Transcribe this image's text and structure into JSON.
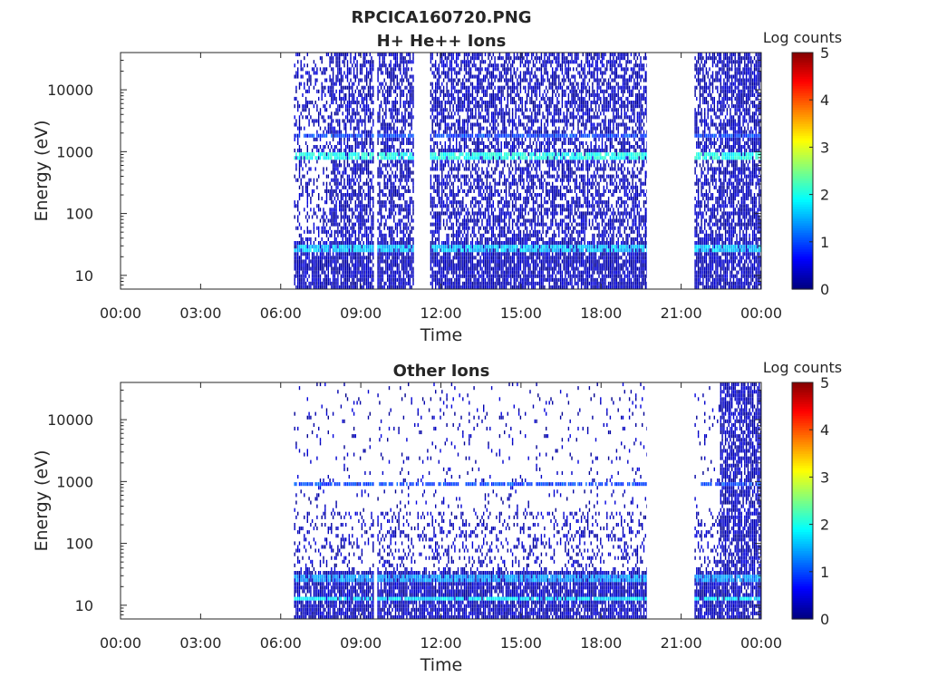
{
  "figure": {
    "title": "RPCICA160720.PNG"
  },
  "colorbar": {
    "label": "Log counts",
    "ticks": [
      "0",
      "1",
      "2",
      "3",
      "4",
      "5"
    ],
    "range": [
      0,
      5
    ],
    "colormap": "jet"
  },
  "chart_data": [
    {
      "type": "heatmap",
      "title": "H+ He++ Ions",
      "xlabel": "Time",
      "ylabel": "Energy (eV)",
      "x_ticks": [
        "00:00",
        "03:00",
        "06:00",
        "09:00",
        "12:00",
        "15:00",
        "18:00",
        "21:00",
        "00:00"
      ],
      "y_ticks": [
        "10",
        "100",
        "1000",
        "10000"
      ],
      "y_scale": "log",
      "y_range_eV": [
        6,
        40000
      ],
      "x_range_hours": [
        0,
        24
      ],
      "data_intervals_hours": [
        [
          6.5,
          19.7
        ],
        [
          21.5,
          24
        ]
      ],
      "data_gaps_hours": [
        [
          9.45,
          9.6
        ],
        [
          11.0,
          11.6
        ]
      ],
      "features": [
        {
          "description": "band",
          "energy_eV": 800,
          "level": 2
        },
        {
          "description": "band",
          "energy_eV": 1700,
          "level": 1
        },
        {
          "description": "band",
          "energy_eV": 25,
          "level": 1.6
        }
      ],
      "grid": false
    },
    {
      "type": "heatmap",
      "title": "Other Ions",
      "xlabel": "Time",
      "ylabel": "Energy (eV)",
      "x_ticks": [
        "00:00",
        "03:00",
        "06:00",
        "09:00",
        "12:00",
        "15:00",
        "18:00",
        "21:00",
        "00:00"
      ],
      "y_ticks": [
        "10",
        "100",
        "1000",
        "10000"
      ],
      "y_scale": "log",
      "y_range_eV": [
        6,
        40000
      ],
      "x_range_hours": [
        0,
        24
      ],
      "data_intervals_hours": [
        [
          6.5,
          19.7
        ],
        [
          21.5,
          24
        ]
      ],
      "data_gaps_hours": [
        [
          9.45,
          9.6
        ]
      ],
      "features": [
        {
          "description": "band",
          "energy_eV": 850,
          "level": 1
        },
        {
          "description": "band",
          "energy_eV": 12,
          "level": 1.8
        },
        {
          "description": "band",
          "energy_eV": 25,
          "level": 1.4
        }
      ],
      "grid": false
    }
  ]
}
